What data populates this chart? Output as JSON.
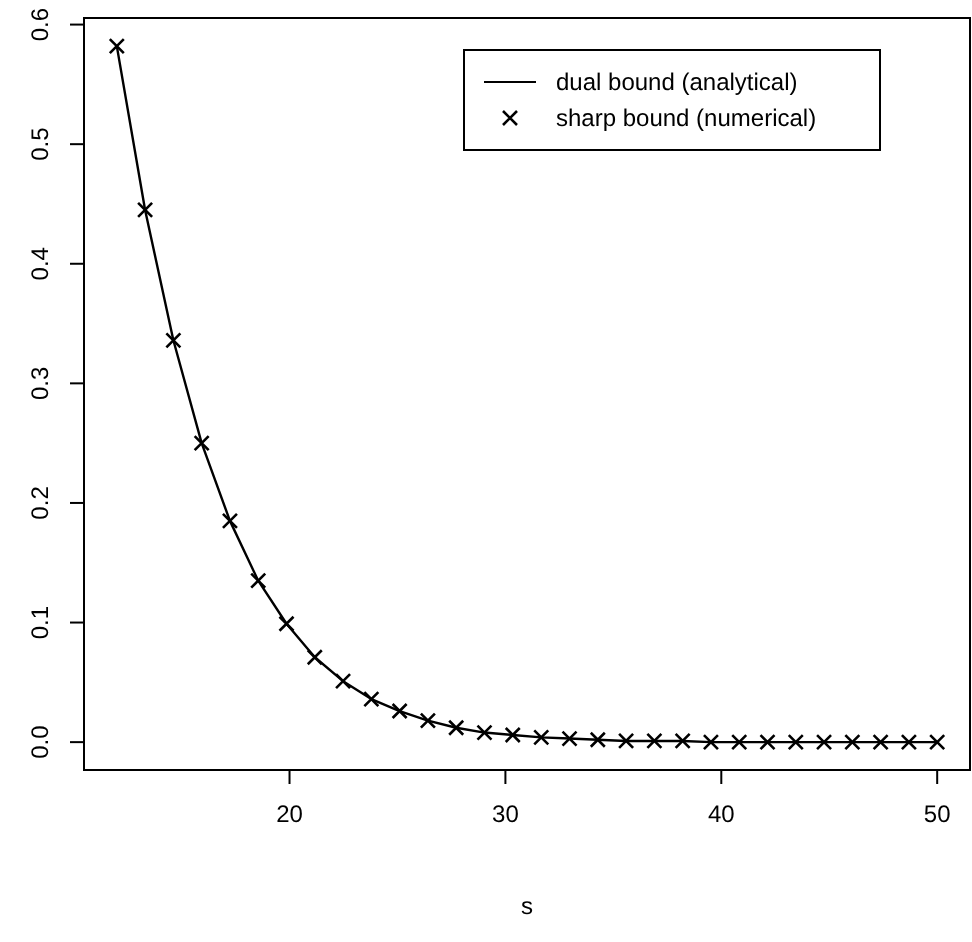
{
  "chart_data": {
    "type": "line",
    "xlabel": "s",
    "x": [
      12,
      13.31,
      14.62,
      15.93,
      17.24,
      18.55,
      19.86,
      21.17,
      22.48,
      23.79,
      25.1,
      26.41,
      27.72,
      29.03,
      30.34,
      31.66,
      32.97,
      34.28,
      35.59,
      36.9,
      38.21,
      39.52,
      40.83,
      42.14,
      43.45,
      44.76,
      46.07,
      47.38,
      48.69,
      50
    ],
    "series": [
      {
        "name": "dual bound (analytical)",
        "color": "#000000",
        "type": "line",
        "marker": "none",
        "values": [
          0.582,
          0.445,
          0.336,
          0.25,
          0.185,
          0.135,
          0.099,
          0.071,
          0.051,
          0.036,
          0.026,
          0.018,
          0.012,
          0.008,
          0.006,
          0.004,
          0.003,
          0.002,
          0.001,
          0.001,
          0.001,
          0,
          0,
          0,
          0,
          0,
          0,
          0,
          0,
          0
        ]
      },
      {
        "name": "sharp bound (numerical)",
        "color": "#000000",
        "type": "scatter",
        "marker": "cross",
        "values": [
          0.582,
          0.445,
          0.336,
          0.25,
          0.185,
          0.135,
          0.099,
          0.071,
          0.051,
          0.036,
          0.026,
          0.018,
          0.012,
          0.008,
          0.006,
          0.004,
          0.003,
          0.002,
          0.001,
          0.001,
          0.001,
          0,
          0,
          0,
          0,
          0,
          0,
          0,
          0,
          0
        ]
      }
    ],
    "xlim": [
      10.48,
      51.52
    ],
    "ylim": [
      -0.0233,
      0.6055
    ],
    "xticks": [
      20,
      30,
      40,
      50
    ],
    "yticks": [
      {
        "value": 0,
        "label": "0.0"
      },
      {
        "value": 0.1,
        "label": "0.1"
      },
      {
        "value": 0.2,
        "label": "0.2"
      },
      {
        "value": 0.3,
        "label": "0.3"
      },
      {
        "value": 0.4,
        "label": "0.4"
      },
      {
        "value": 0.5,
        "label": "0.5"
      },
      {
        "value": 0.6,
        "label": "0.6"
      }
    ],
    "legend": "top right",
    "grid": false,
    "line_style": "solid"
  }
}
